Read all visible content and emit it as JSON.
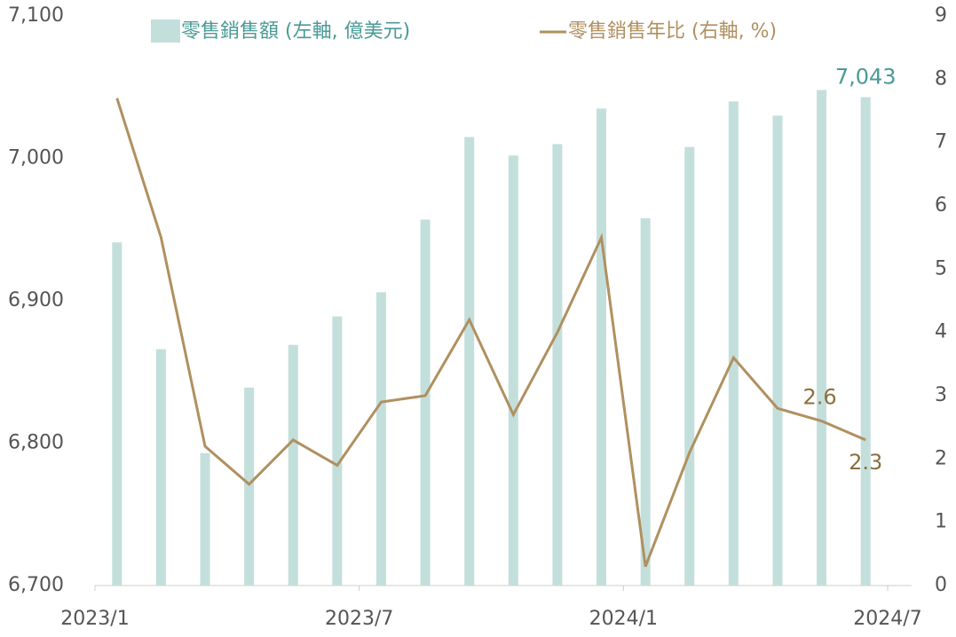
{
  "chart_data": {
    "type": "bar_line",
    "series": [
      {
        "name": "零售銷售額 (左軸, 億美元)",
        "type": "bar",
        "color": "#c3dfdc",
        "label_color": "#4a9a96",
        "values": [
          6941,
          6866,
          6793,
          6839,
          6869,
          6889,
          6906,
          6957,
          7015,
          7002,
          7010,
          7035,
          6958,
          7008,
          7040,
          7030,
          7048,
          7043
        ],
        "value_labels": [
          null,
          null,
          null,
          null,
          null,
          null,
          null,
          null,
          null,
          null,
          null,
          null,
          null,
          null,
          null,
          null,
          null,
          "7,043"
        ]
      },
      {
        "name": "零售銷售年比 (右軸, %)",
        "type": "line",
        "axis": "y2",
        "color": "#b09060",
        "label_color": "#8a7040",
        "values": [
          7.7,
          5.5,
          2.2,
          1.6,
          2.3,
          1.9,
          2.9,
          3.0,
          4.2,
          2.7,
          4.0,
          5.5,
          0.3,
          2.1,
          3.6,
          2.8,
          2.6,
          2.3
        ],
        "value_labels": [
          null,
          null,
          null,
          null,
          null,
          null,
          null,
          null,
          null,
          null,
          null,
          null,
          null,
          null,
          null,
          null,
          "2.6",
          "2.3"
        ]
      }
    ],
    "xticks": [
      "2023/1",
      "2023/7",
      "2024/1",
      "2024/7"
    ],
    "ylim": [
      6700,
      7100
    ],
    "yticks": [
      {
        "value": 6700,
        "label": "6,700"
      },
      {
        "value": 6800,
        "label": "6,800"
      },
      {
        "value": 6900,
        "label": "6,900"
      },
      {
        "value": 7000,
        "label": "7,000"
      },
      {
        "value": 7100,
        "label": "7,100"
      }
    ],
    "y2lim": [
      0,
      9
    ],
    "y2ticks": [
      0,
      1,
      2,
      3,
      4,
      5,
      6,
      7,
      8,
      9
    ]
  }
}
